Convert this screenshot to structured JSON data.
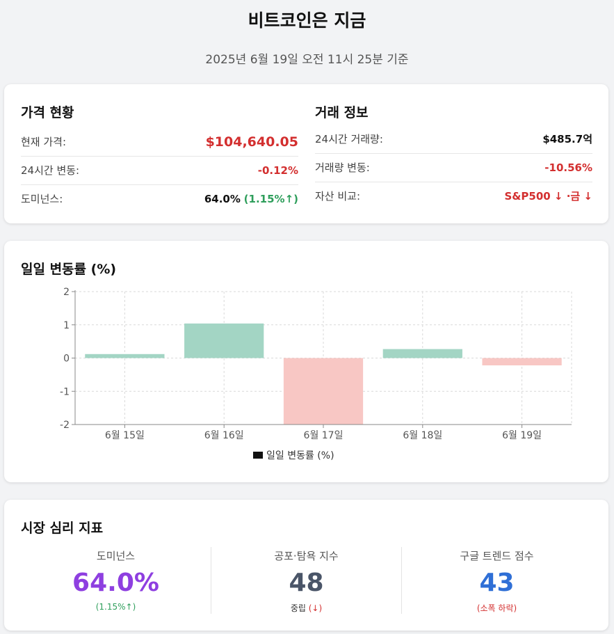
{
  "page": {
    "title": "비트코인은 지금",
    "subtitle": "2025년 6월 19일 오전 11시 25분 기준"
  },
  "price_status": {
    "title": "가격 현황",
    "rows": [
      {
        "label": "현재 가격:",
        "value": "$104,640.05"
      },
      {
        "label": "24시간 변동:",
        "value": "-0.12%"
      },
      {
        "label": "도미넌스:",
        "value": "64.0%",
        "extra": "(1.15%↑)"
      }
    ]
  },
  "trade_info": {
    "title": "거래 정보",
    "rows": [
      {
        "label": "24시간 거래량:",
        "value": "$485.7억"
      },
      {
        "label": "거래량 변동:",
        "value": "-10.56%"
      },
      {
        "label": "자산 비교:",
        "value": "S&P500 ↓ ·금 ↓"
      }
    ]
  },
  "chart_title": "일일 변동률 (%)",
  "chart_data": {
    "type": "bar",
    "title": "일일 변동률 (%)",
    "categories": [
      "6월 15일",
      "6월 16일",
      "6월 17일",
      "6월 18일",
      "6월 19일"
    ],
    "values": [
      0.12,
      1.04,
      -2.0,
      0.27,
      -0.22
    ],
    "series": [
      {
        "name": "일일 변동률 (%)",
        "values": [
          0.12,
          1.04,
          -2.0,
          0.27,
          -0.22
        ]
      }
    ],
    "ylim": [
      -2,
      2
    ],
    "yticks": [
      "-2",
      "-1",
      "0",
      "1",
      "2"
    ],
    "grid": true,
    "legend": "bottom-center",
    "colors": {
      "positive": "#a3d5c4",
      "negative": "#f8c7c4",
      "legend": "#111111"
    }
  },
  "sentiment": {
    "title": "시장 심리 지표",
    "metrics": [
      {
        "label": "도미넌스",
        "value": "64.0%",
        "sub": "(1.15%↑)",
        "color": "#8e3fe0",
        "sub_color": "#2e9e5b"
      },
      {
        "label": "공포·탐욕 지수",
        "value": "48",
        "sub": "중립",
        "sub2": "(↓)",
        "color": "#4a5568",
        "sub_color": "#333333",
        "sub2_color": "#d32f2f"
      },
      {
        "label": "구글 트렌드 점수",
        "value": "43",
        "sub": "(소폭 하락)",
        "color": "#2f6fd6",
        "sub_color": "#d32f2f"
      }
    ]
  }
}
